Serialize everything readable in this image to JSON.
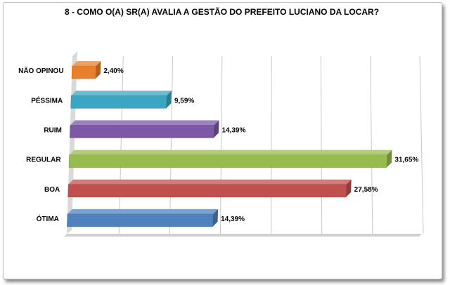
{
  "chart_data": {
    "type": "bar",
    "orientation": "horizontal",
    "title": "8 - COMO O(A) SR(A) AVALIA A GESTÃO DO PREFEITO LUCIANO DA LOCAR?",
    "categories": [
      "NÃO OPINOU",
      "PÉSSIMA",
      "RUIM",
      "REGULAR",
      "BOA",
      "ÓTIMA"
    ],
    "values": [
      2.4,
      9.59,
      14.39,
      31.65,
      27.58,
      14.39
    ],
    "value_labels": [
      "2,40%",
      "9,59%",
      "14,39%",
      "31,65%",
      "27,58%",
      "14,39%"
    ],
    "colors": [
      "#E8802B",
      "#3AA6C2",
      "#7D58A4",
      "#98BB50",
      "#C0504D",
      "#4F81BD"
    ],
    "xlim": [
      0,
      35
    ],
    "grid": true,
    "legend": "none",
    "style": "3d"
  }
}
